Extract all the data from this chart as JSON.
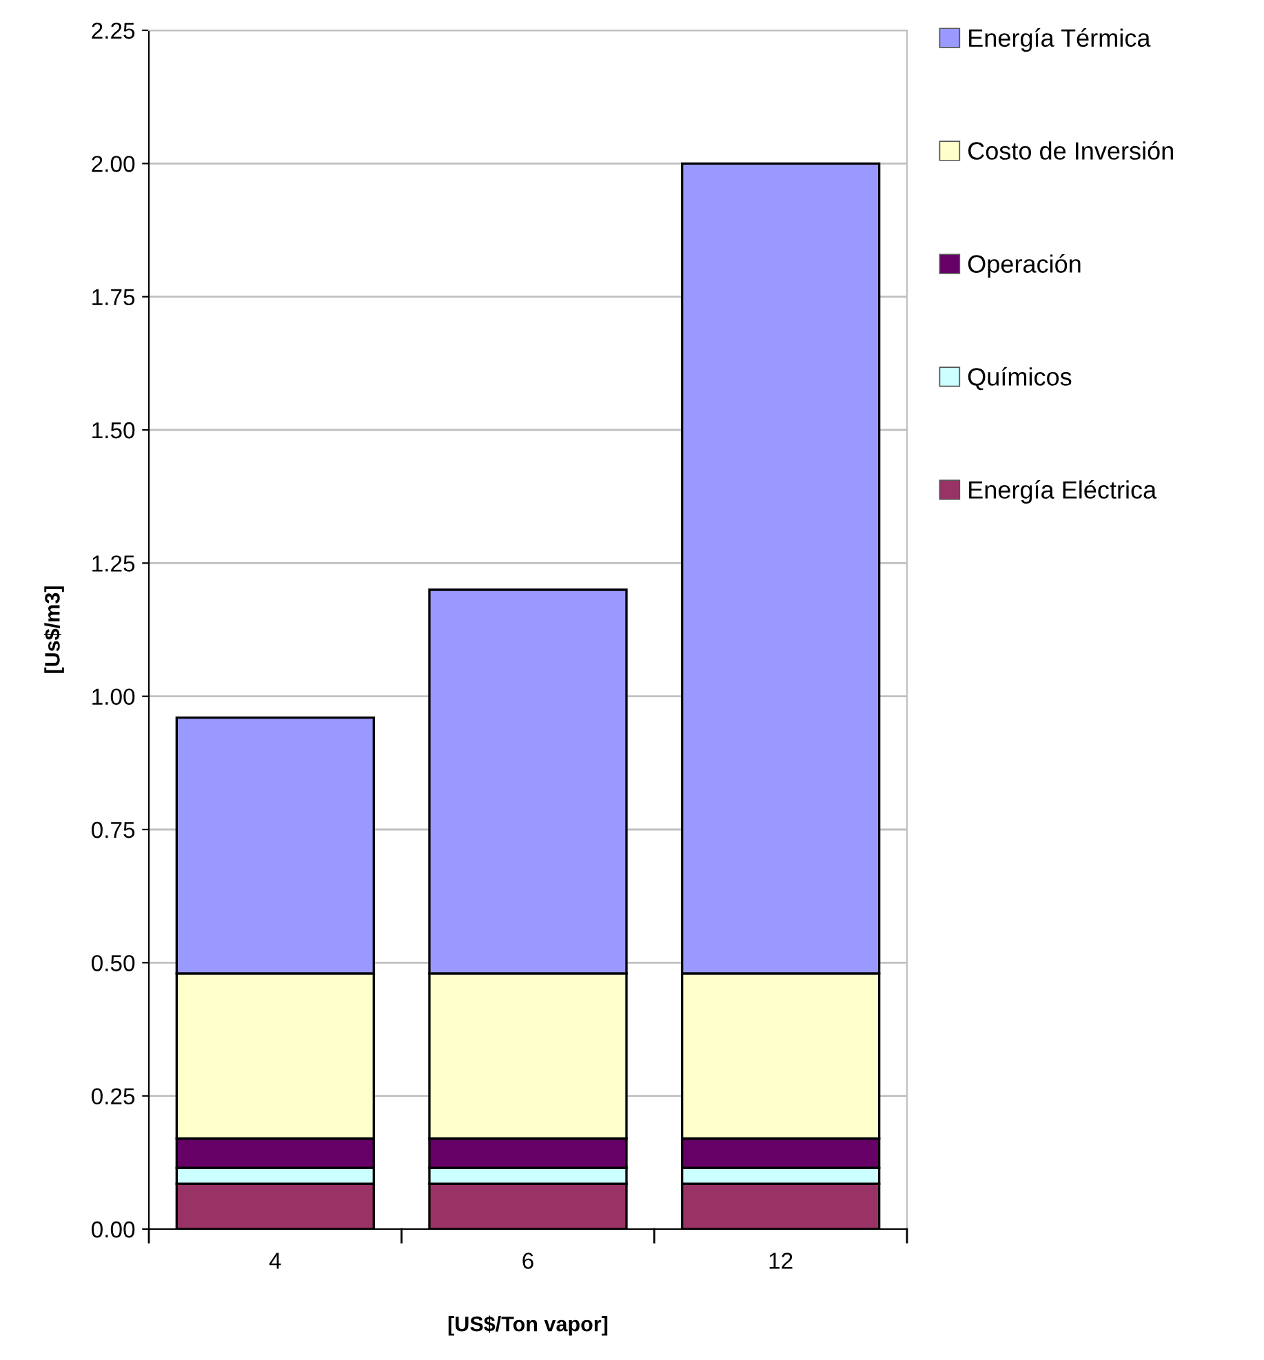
{
  "chart_data": {
    "type": "bar",
    "stacked": true,
    "xlabel": "[US$/Ton vapor]",
    "ylabel": "[Us$/m3]",
    "categories": [
      "4",
      "6",
      "12"
    ],
    "series": [
      {
        "name": "Energía Eléctrica",
        "color": "#993366",
        "values": [
          0.085,
          0.085,
          0.085
        ]
      },
      {
        "name": "Químicos",
        "color": "#ccffff",
        "values": [
          0.03,
          0.03,
          0.03
        ]
      },
      {
        "name": "Operación",
        "color": "#660066",
        "values": [
          0.055,
          0.055,
          0.055
        ]
      },
      {
        "name": "Costo de Inversión",
        "color": "#ffffcc",
        "values": [
          0.31,
          0.31,
          0.31
        ]
      },
      {
        "name": "Energía Térmica",
        "color": "#9999ff",
        "values": [
          0.48,
          0.72,
          1.52
        ]
      }
    ],
    "ylim": [
      0,
      2.25
    ],
    "yticks": [
      {
        "value": 0,
        "label": "0.00"
      },
      {
        "value": 0.25,
        "label": "0.25"
      },
      {
        "value": 0.5,
        "label": "0.50"
      },
      {
        "value": 0.75,
        "label": "0.75"
      },
      {
        "value": 1,
        "label": "1.00"
      },
      {
        "value": 1.25,
        "label": "1.25"
      },
      {
        "value": 1.5,
        "label": "1.50"
      },
      {
        "value": 1.75,
        "label": "1.75"
      },
      {
        "value": 2,
        "label": "2.00"
      },
      {
        "value": 2.25,
        "label": "2.25"
      }
    ],
    "grid": "y",
    "legend": "right"
  }
}
